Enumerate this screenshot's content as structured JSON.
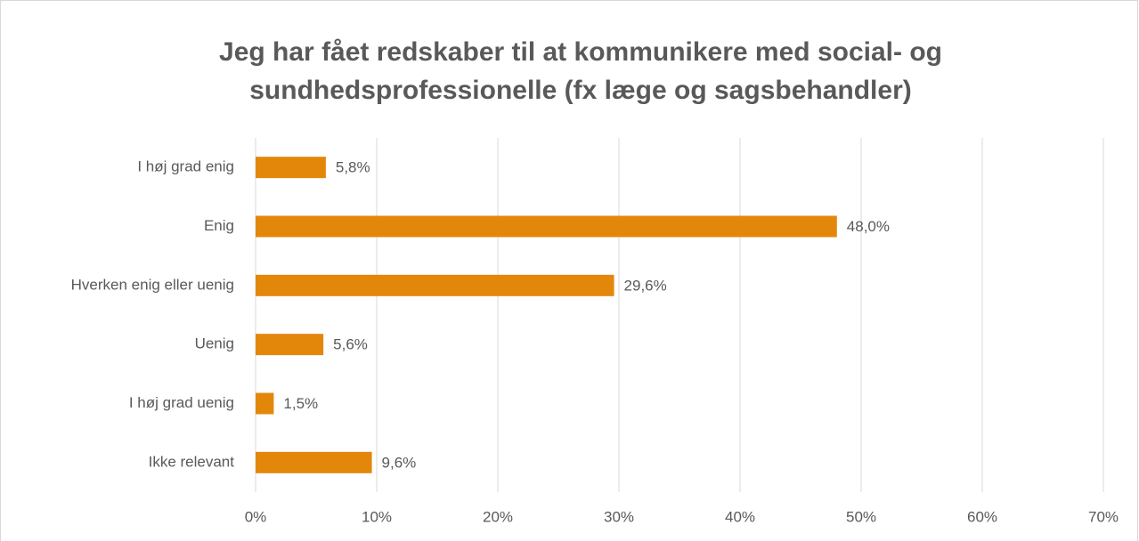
{
  "chart_data": {
    "type": "barh",
    "title": [
      "Jeg har fået redskaber til at kommunikere med social- og",
      "sundhedsprofessionelle (fx læge og sagsbehandler)"
    ],
    "categories": [
      "I høj grad enig",
      "Enig",
      "Hverken enig eller uenig",
      "Uenig",
      "I høj grad uenig",
      "Ikke relevant"
    ],
    "values": [
      5.8,
      48.0,
      29.6,
      5.6,
      1.5,
      9.6
    ],
    "value_labels": [
      "5,8%",
      "48,0%",
      "29,6%",
      "5,6%",
      "1,5%",
      "9,6%"
    ],
    "color": "#e3870b",
    "xlim": [
      0,
      70
    ],
    "xticks": [
      {
        "value": 0,
        "label": "0%"
      },
      {
        "value": 10,
        "label": "10%"
      },
      {
        "value": 20,
        "label": "20%"
      },
      {
        "value": 30,
        "label": "30%"
      },
      {
        "value": 40,
        "label": "40%"
      },
      {
        "value": 50,
        "label": "50%"
      },
      {
        "value": 60,
        "label": "60%"
      },
      {
        "value": 70,
        "label": "70%"
      }
    ],
    "grid": true
  }
}
